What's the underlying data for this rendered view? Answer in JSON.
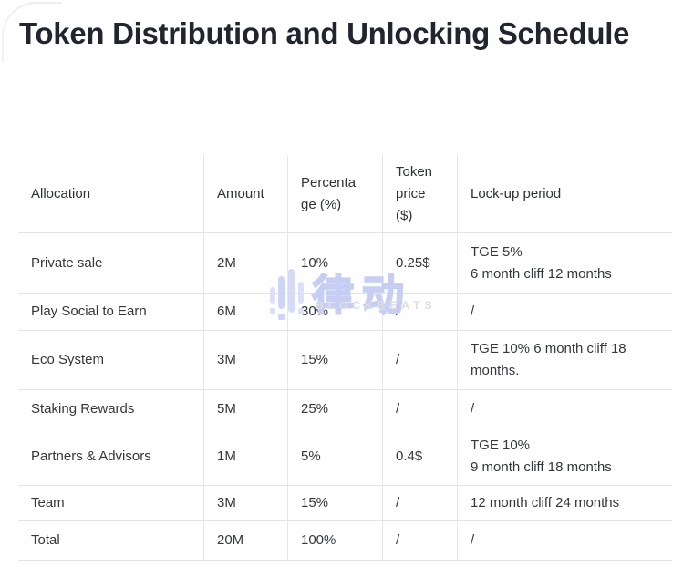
{
  "page": {
    "title": "Token Distribution and Unlocking Schedule"
  },
  "colors": {
    "background": "#fdfdfd",
    "title_text": "#22252e",
    "body_text": "#35373e",
    "table_border": "#e4e4e7",
    "watermark_blue": "#c6cff3",
    "watermark_gray": "#dddee3"
  },
  "table": {
    "columns": [
      {
        "key": "allocation",
        "label": "Allocation"
      },
      {
        "key": "amount",
        "label": "Amount"
      },
      {
        "key": "percentage",
        "label": "Percenta\nge (%)"
      },
      {
        "key": "token_price",
        "label": "Token\nprice\n($)"
      },
      {
        "key": "lockup",
        "label": "Lock-up period"
      }
    ],
    "rows": [
      {
        "allocation": "Private sale",
        "amount": "2M",
        "percentage": "10%",
        "token_price": "0.25$",
        "lockup": "TGE 5%\n6 month cliff 12 months"
      },
      {
        "allocation": "Play Social to Earn",
        "amount": "6M",
        "percentage": "30%",
        "token_price": "/",
        "lockup": "/"
      },
      {
        "allocation": "Eco System",
        "amount": "3M",
        "percentage": "15%",
        "token_price": "/",
        "lockup": "TGE 10% 6 month cliff 18\nmonths."
      },
      {
        "allocation": "Staking Rewards",
        "amount": "5M",
        "percentage": "25%",
        "token_price": "/",
        "lockup": "/"
      },
      {
        "allocation": "Partners & Advisors",
        "amount": "1M",
        "percentage": "5%",
        "token_price": "0.4$",
        "lockup": "TGE 10%\n9 month cliff 18 months"
      },
      {
        "allocation": "Team",
        "amount": "3M",
        "percentage": "15%",
        "token_price": "/",
        "lockup": "12 month cliff 24 months"
      },
      {
        "allocation": "Total",
        "amount": "20M",
        "percentage": "100%",
        "token_price": "/",
        "lockup": "/"
      }
    ]
  },
  "watermark": {
    "chinese": "律动",
    "latin": "BLOCKBEATS"
  }
}
